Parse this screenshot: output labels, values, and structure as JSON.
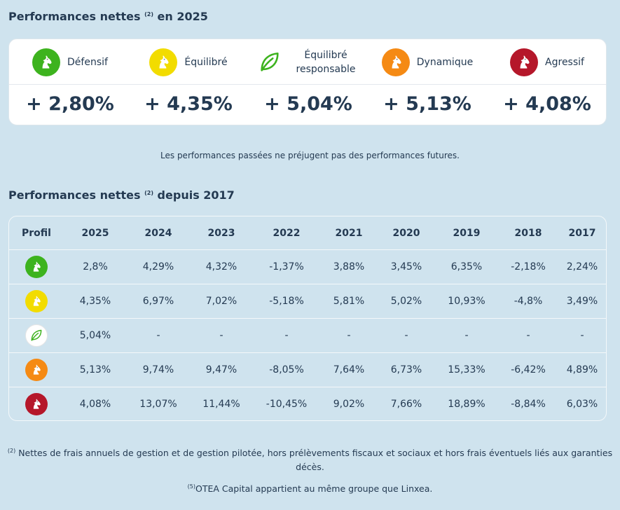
{
  "section1": {
    "title_before": "Performances nettes ",
    "title_sup": "(2)",
    "title_after": " en 2025"
  },
  "profiles": [
    {
      "label": "Défensif",
      "perf": "+ 2,80%",
      "color": "#3db31e",
      "icon": "horse-head-icon"
    },
    {
      "label": "Équilibré",
      "perf": "+ 4,35%",
      "color": "#f2dc00",
      "icon": "horse-head-icon"
    },
    {
      "label": "Équilibré responsable",
      "perf": "+ 5,04%",
      "color": "#3db31e",
      "icon": "leaf-icon"
    },
    {
      "label": "Dynamique",
      "perf": "+ 5,13%",
      "color": "#f58a14",
      "icon": "horse-head-icon"
    },
    {
      "label": "Agressif",
      "perf": "+ 4,08%",
      "color": "#b5172a",
      "icon": "horse-head-icon"
    }
  ],
  "disclaimer": "Les performances passées ne préjugent pas des performances futures.",
  "section2": {
    "title_before": "Performances nettes ",
    "title_sup": "(2)",
    "title_after": " depuis 2017"
  },
  "table": {
    "headers": [
      "Profil",
      "2025",
      "2024",
      "2023",
      "2022",
      "2021",
      "2020",
      "2019",
      "2018",
      "2017"
    ],
    "rows": [
      [
        "2,8%",
        "4,29%",
        "4,32%",
        "-1,37%",
        "3,88%",
        "3,45%",
        "6,35%",
        "-2,18%",
        "2,24%"
      ],
      [
        "4,35%",
        "6,97%",
        "7,02%",
        "-5,18%",
        "5,81%",
        "5,02%",
        "10,93%",
        "-4,8%",
        "3,49%"
      ],
      [
        "5,04%",
        "-",
        "-",
        "-",
        "-",
        "-",
        "-",
        "-",
        "-"
      ],
      [
        "5,13%",
        "9,74%",
        "9,47%",
        "-8,05%",
        "7,64%",
        "6,73%",
        "15,33%",
        "-6,42%",
        "4,89%"
      ],
      [
        "4,08%",
        "13,07%",
        "11,44%",
        "-10,45%",
        "9,02%",
        "7,66%",
        "18,89%",
        "-8,84%",
        "6,03%"
      ]
    ]
  },
  "footnote": {
    "sup": "(2)",
    "text": " Nettes de frais annuels de gestion et de gestion pilotée, hors prélèvements fiscaux et sociaux et hors frais éventuels liés aux garanties décès."
  },
  "otea": {
    "sup": "(5)",
    "text": "OTEA Capital appartient au même groupe que Linxea."
  }
}
